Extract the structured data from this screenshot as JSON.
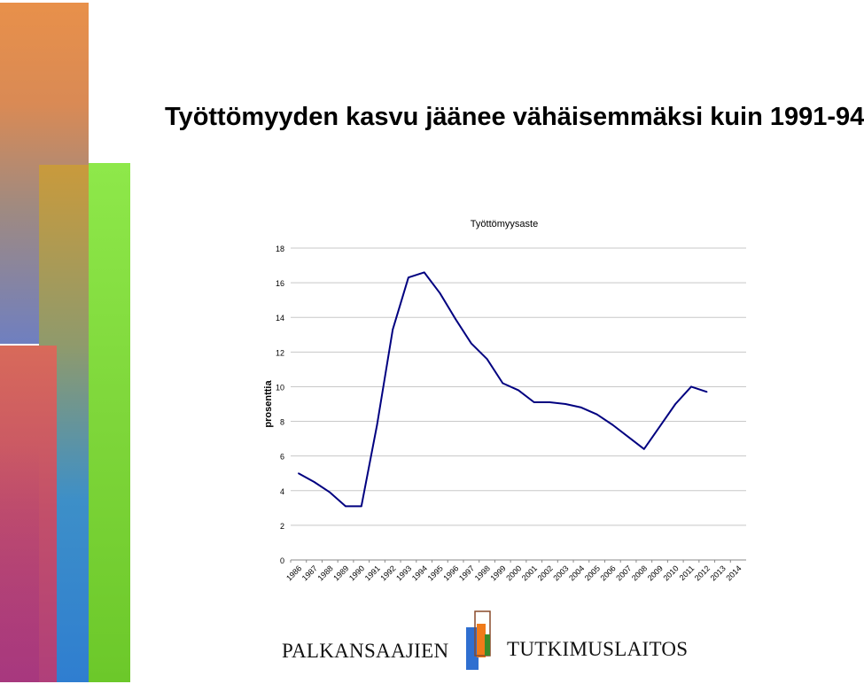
{
  "title": "Työttömyyden kasvu jäänee vähäisemmäksi kuin 1991-94",
  "chart_data": {
    "type": "line",
    "title": "Työttömyysaste",
    "ylabel": "prosenttia",
    "xlabel": "",
    "ylim": [
      0,
      18
    ],
    "yticks": [
      0,
      2,
      4,
      6,
      8,
      10,
      12,
      14,
      16,
      18
    ],
    "grid": true,
    "categories": [
      "1986",
      "1987",
      "1988",
      "1989",
      "1990",
      "1991",
      "1992",
      "1993",
      "1994",
      "1995",
      "1996",
      "1997",
      "1998",
      "1999",
      "2000",
      "2001",
      "2002",
      "2003",
      "2004",
      "2005",
      "2006",
      "2007",
      "2008",
      "2009",
      "2010",
      "2011",
      "2012",
      "2013",
      "2014"
    ],
    "series": [
      {
        "values": [
          5.0,
          4.5,
          3.9,
          3.1,
          3.1,
          7.8,
          13.3,
          16.3,
          16.6,
          15.4,
          13.9,
          12.5,
          11.6,
          10.2,
          9.8,
          9.1,
          9.1,
          9.0,
          8.8,
          8.4,
          7.8,
          7.1,
          6.4,
          7.7,
          9.0,
          10.0,
          9.7,
          null,
          null
        ],
        "color": "#000080"
      }
    ]
  },
  "footer": {
    "org_left": "PALKANSAAJIEN",
    "org_right": "TUTKIMUSLAITOS"
  }
}
